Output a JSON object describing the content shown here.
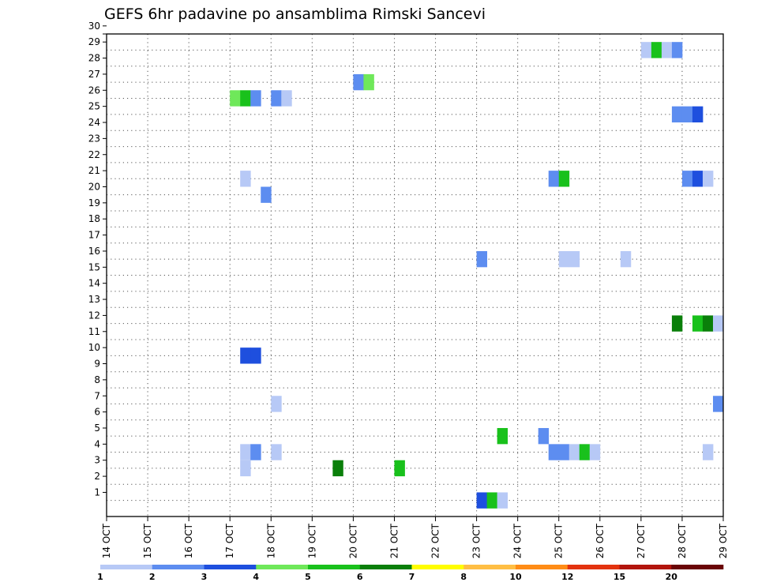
{
  "chart_data": {
    "type": "heatmap",
    "title": "GEFS 6hr padavine po ansamblima Rimski Sancevi",
    "xlabel": "",
    "ylabel": "",
    "x_ticks": [
      "14 OCT",
      "15 OCT",
      "16 OCT",
      "17 OCT",
      "18 OCT",
      "19 OCT",
      "20 OCT",
      "21 OCT",
      "22 OCT",
      "23 OCT",
      "24 OCT",
      "25 OCT",
      "26 OCT",
      "27 OCT",
      "28 OCT",
      "29 OCT"
    ],
    "y_ticks": [
      "1",
      "2",
      "3",
      "4",
      "5",
      "6",
      "7",
      "8",
      "9",
      "10",
      "11",
      "12",
      "13",
      "14",
      "15",
      "16",
      "17",
      "18",
      "19",
      "20",
      "21",
      "22",
      "23",
      "24",
      "25",
      "26",
      "27",
      "28",
      "29",
      "30"
    ],
    "xlim": [
      0,
      15
    ],
    "ylim": [
      0,
      30
    ],
    "grid": true,
    "colorbar": {
      "labels": [
        "1",
        "2",
        "3",
        "4",
        "5",
        "6",
        "7",
        "8",
        "10",
        "12",
        "15",
        "20"
      ],
      "colors": [
        "#b7c9f6",
        "#5d8df0",
        "#1e4fde",
        "#6fe85a",
        "#19c11c",
        "#0a7f0a",
        "#fffd00",
        "#ffbe44",
        "#ff8c16",
        "#e3330f",
        "#b2150c",
        "#6a0506"
      ]
    },
    "cells": [
      {
        "day": 13.0,
        "ens": 29,
        "cat": 0
      },
      {
        "day": 13.25,
        "ens": 29,
        "cat": 4
      },
      {
        "day": 13.5,
        "ens": 29,
        "cat": 0
      },
      {
        "day": 13.75,
        "ens": 29,
        "cat": 1
      },
      {
        "day": 6.0,
        "ens": 27,
        "cat": 1
      },
      {
        "day": 6.25,
        "ens": 27,
        "cat": 3
      },
      {
        "day": 3.0,
        "ens": 26,
        "cat": 3
      },
      {
        "day": 3.25,
        "ens": 26,
        "cat": 4
      },
      {
        "day": 3.5,
        "ens": 26,
        "cat": 1
      },
      {
        "day": 4.0,
        "ens": 26,
        "cat": 1
      },
      {
        "day": 4.25,
        "ens": 26,
        "cat": 0
      },
      {
        "day": 13.75,
        "ens": 25,
        "cat": 1
      },
      {
        "day": 14.0,
        "ens": 25,
        "cat": 1
      },
      {
        "day": 14.25,
        "ens": 25,
        "cat": 2
      },
      {
        "day": 3.25,
        "ens": 21,
        "cat": 0
      },
      {
        "day": 10.75,
        "ens": 21,
        "cat": 1
      },
      {
        "day": 11.0,
        "ens": 21,
        "cat": 4
      },
      {
        "day": 14.0,
        "ens": 21,
        "cat": 1
      },
      {
        "day": 14.25,
        "ens": 21,
        "cat": 2
      },
      {
        "day": 14.5,
        "ens": 21,
        "cat": 0
      },
      {
        "day": 3.75,
        "ens": 20,
        "cat": 1
      },
      {
        "day": 9.0,
        "ens": 16,
        "cat": 1
      },
      {
        "day": 11.0,
        "ens": 16,
        "cat": 0
      },
      {
        "day": 11.25,
        "ens": 16,
        "cat": 0
      },
      {
        "day": 12.5,
        "ens": 16,
        "cat": 0
      },
      {
        "day": 13.75,
        "ens": 12,
        "cat": 5
      },
      {
        "day": 14.25,
        "ens": 12,
        "cat": 4
      },
      {
        "day": 14.5,
        "ens": 12,
        "cat": 5
      },
      {
        "day": 14.75,
        "ens": 12,
        "cat": 0
      },
      {
        "day": 3.25,
        "ens": 10,
        "cat": 2
      },
      {
        "day": 3.5,
        "ens": 10,
        "cat": 2
      },
      {
        "day": 4.0,
        "ens": 7,
        "cat": 0
      },
      {
        "day": 14.75,
        "ens": 7,
        "cat": 1
      },
      {
        "day": 9.5,
        "ens": 5,
        "cat": 4
      },
      {
        "day": 10.5,
        "ens": 5,
        "cat": 1
      },
      {
        "day": 3.25,
        "ens": 4,
        "cat": 0
      },
      {
        "day": 3.5,
        "ens": 4,
        "cat": 1
      },
      {
        "day": 4.0,
        "ens": 4,
        "cat": 0
      },
      {
        "day": 10.75,
        "ens": 4,
        "cat": 1
      },
      {
        "day": 11.0,
        "ens": 4,
        "cat": 1
      },
      {
        "day": 11.25,
        "ens": 4,
        "cat": 0
      },
      {
        "day": 11.5,
        "ens": 4,
        "cat": 4
      },
      {
        "day": 11.75,
        "ens": 4,
        "cat": 0
      },
      {
        "day": 14.5,
        "ens": 4,
        "cat": 0
      },
      {
        "day": 3.25,
        "ens": 3,
        "cat": 0
      },
      {
        "day": 5.5,
        "ens": 3,
        "cat": 5
      },
      {
        "day": 7.0,
        "ens": 3,
        "cat": 4
      },
      {
        "day": 9.0,
        "ens": 1,
        "cat": 2
      },
      {
        "day": 9.25,
        "ens": 1,
        "cat": 4
      },
      {
        "day": 9.5,
        "ens": 1,
        "cat": 0
      }
    ]
  }
}
